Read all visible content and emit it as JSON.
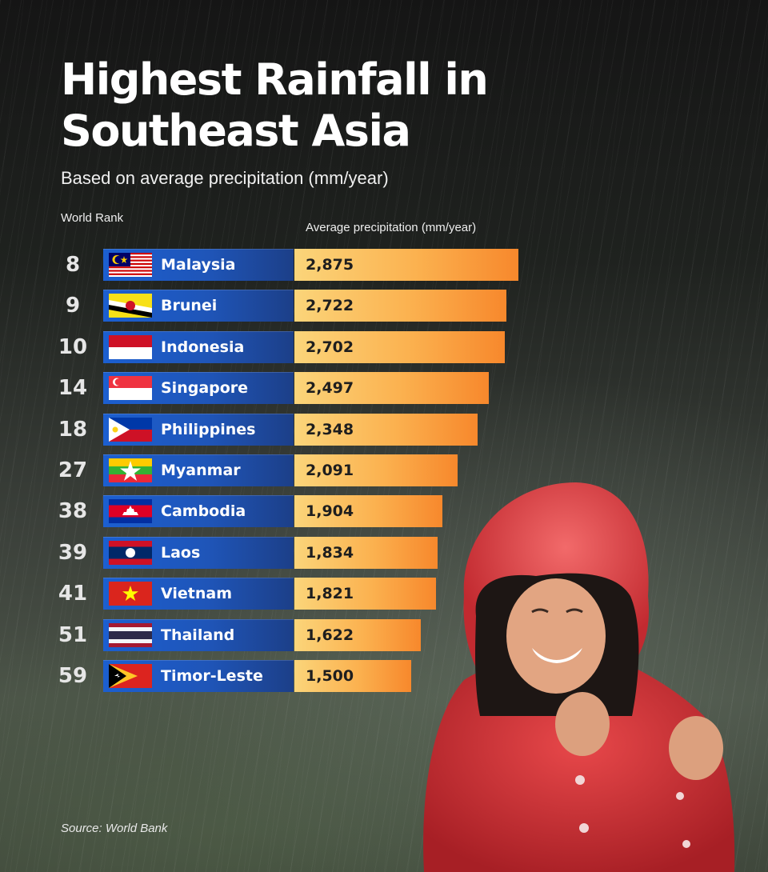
{
  "title": "Highest Rainfall in Southeast Asia",
  "subtitle": "Based on average precipitation (mm/year)",
  "rank_header": "World Rank",
  "value_header": "Average precipitation (mm/year)",
  "source": "Source: World Bank",
  "colors": {
    "country_bar": "#1f55b8",
    "value_bar_start": "#fbd57a",
    "value_bar_end": "#f7882c",
    "raincoat": "#d8363a"
  },
  "chart_data": {
    "type": "bar",
    "orientation": "horizontal",
    "categories": [
      "Malaysia",
      "Brunei",
      "Indonesia",
      "Singapore",
      "Philippines",
      "Myanmar",
      "Cambodia",
      "Laos",
      "Vietnam",
      "Thailand",
      "Timor-Leste"
    ],
    "ranks": [
      "8",
      "9",
      "10",
      "14",
      "18",
      "27",
      "38",
      "39",
      "41",
      "51",
      "59"
    ],
    "values": [
      2875,
      2722,
      2702,
      2497,
      2348,
      2091,
      1904,
      1834,
      1821,
      1622,
      1500
    ],
    "value_labels": [
      "2,875",
      "2,722",
      "2,702",
      "2,497",
      "2,348",
      "2,091",
      "1,904",
      "1,834",
      "1,821",
      "1,622",
      "1,500"
    ],
    "flags": [
      "malaysia-flag",
      "brunei-flag",
      "indonesia-flag",
      "singapore-flag",
      "philippines-flag",
      "myanmar-flag",
      "cambodia-flag",
      "laos-flag",
      "vietnam-flag",
      "thailand-flag",
      "timor-leste-flag"
    ],
    "title": "Highest Rainfall in Southeast Asia",
    "xlabel": "Average precipitation (mm/year)",
    "ylabel": "World Rank",
    "grid": false
  }
}
